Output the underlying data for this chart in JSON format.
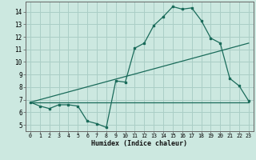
{
  "xlabel": "Humidex (Indice chaleur)",
  "ylabel": "",
  "bg_color": "#cce8e0",
  "grid_color": "#aacec6",
  "line_color": "#1a6b5a",
  "xlim": [
    -0.5,
    23.5
  ],
  "ylim": [
    4.5,
    14.8
  ],
  "xticks": [
    0,
    1,
    2,
    3,
    4,
    5,
    6,
    7,
    8,
    9,
    10,
    11,
    12,
    13,
    14,
    15,
    16,
    17,
    18,
    19,
    20,
    21,
    22,
    23
  ],
  "yticks": [
    5,
    6,
    7,
    8,
    9,
    10,
    11,
    12,
    13,
    14
  ],
  "line1_x": [
    0,
    1,
    2,
    3,
    4,
    5,
    6,
    7,
    8,
    9,
    10,
    11,
    12,
    13,
    14,
    15,
    16,
    17,
    18,
    19,
    20,
    21,
    22,
    23
  ],
  "line1_y": [
    6.8,
    6.5,
    6.3,
    6.6,
    6.6,
    6.5,
    5.3,
    5.1,
    4.8,
    8.5,
    8.4,
    11.1,
    11.5,
    12.9,
    13.6,
    14.4,
    14.2,
    14.3,
    13.3,
    11.9,
    11.5,
    8.7,
    8.1,
    6.9
  ],
  "line2_x": [
    0,
    23
  ],
  "line2_y": [
    6.8,
    11.5
  ],
  "line3_x": [
    0,
    23
  ],
  "line3_y": [
    6.8,
    6.8
  ]
}
